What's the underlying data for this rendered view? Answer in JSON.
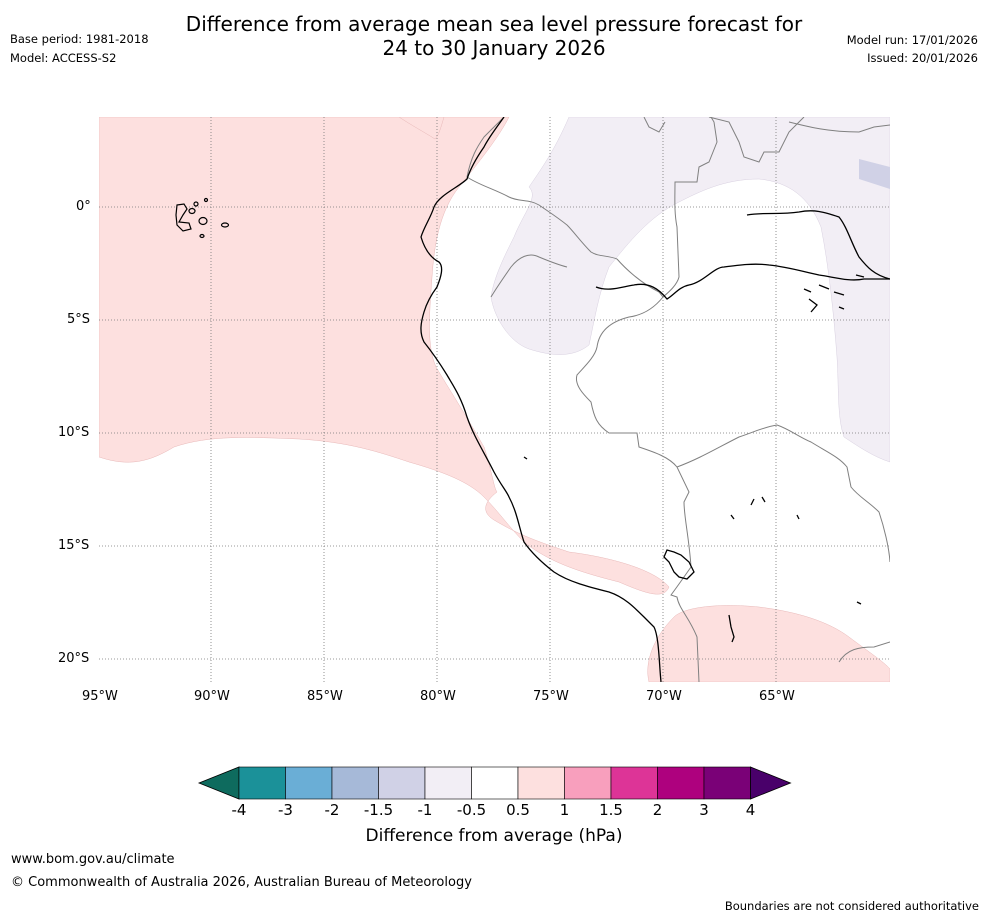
{
  "header": {
    "base_period": "Base period: 1981-2018",
    "model": "Model: ACCESS-S2",
    "title_line1": "Difference from average mean sea level pressure forecast for",
    "title_line2": "24 to 30 January 2026",
    "model_run": "Model run: 17/01/2026",
    "issued": "Issued: 20/01/2026"
  },
  "map": {
    "lat_labels": [
      "0°",
      "5°S",
      "10°S",
      "15°S",
      "20°S"
    ],
    "lon_labels": [
      "95°W",
      "90°W",
      "85°W",
      "80°W",
      "75°W",
      "70°W",
      "65°W"
    ],
    "colors": {
      "pos_0_5_to_1": "#fde0df",
      "neg_0_5_to_1": "#f2eef5",
      "neg_1_to_1_5": "#d0d1e6",
      "coast": "#000000",
      "border": "#808080",
      "grid": "#888888"
    }
  },
  "colorbar": {
    "ticks": [
      "-4",
      "-3",
      "-2",
      "-1.5",
      "-1",
      "-0.5",
      "0.5",
      "1",
      "1.5",
      "2",
      "3",
      "4"
    ],
    "colors": [
      "#0e6b5e",
      "#1b9199",
      "#6aaed6",
      "#a6b9d8",
      "#d0d1e6",
      "#f2eef5",
      "#ffffff",
      "#fde0df",
      "#f89fbd",
      "#dd3497",
      "#ae017e",
      "#7a0177",
      "#49006a"
    ],
    "label": "Difference from average (hPa)"
  },
  "footer": {
    "url": "www.bom.gov.au/climate",
    "copyright": "© Commonwealth of Australia 2026, Australian Bureau of Meteorology",
    "disclaimer": "Boundaries are not considered authoritative"
  }
}
